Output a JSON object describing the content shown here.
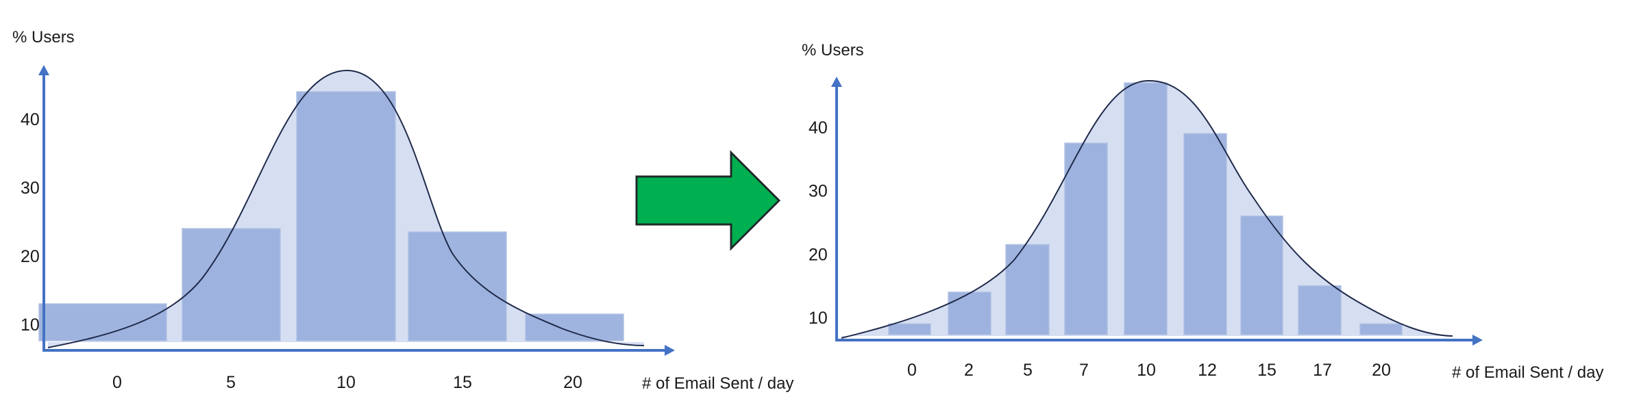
{
  "chart_data": [
    {
      "type": "bar",
      "ylabel": "% Users",
      "xlabel": "# of Email Sent / day",
      "y_ticks": [
        10,
        20,
        30,
        40
      ],
      "ylim": [
        5,
        50
      ],
      "categories": [
        "0",
        "5",
        "10",
        "15",
        "20"
      ],
      "values": [
        13,
        24,
        44,
        23.5,
        11.5
      ],
      "overlay": "normal-curve"
    },
    {
      "type": "bar",
      "ylabel": "% Users",
      "xlabel": "# of Email Sent / day",
      "y_ticks": [
        10,
        20,
        30,
        40
      ],
      "ylim": [
        5,
        50
      ],
      "categories": [
        "0",
        "2",
        "5",
        "7",
        "10",
        "12",
        "15",
        "17",
        "20"
      ],
      "values": [
        9,
        14,
        21.5,
        37.5,
        47,
        39,
        26,
        15,
        9
      ],
      "overlay": "normal-curve"
    }
  ],
  "arrow": {
    "color": "#00b050",
    "icon": "right-arrow-icon"
  }
}
